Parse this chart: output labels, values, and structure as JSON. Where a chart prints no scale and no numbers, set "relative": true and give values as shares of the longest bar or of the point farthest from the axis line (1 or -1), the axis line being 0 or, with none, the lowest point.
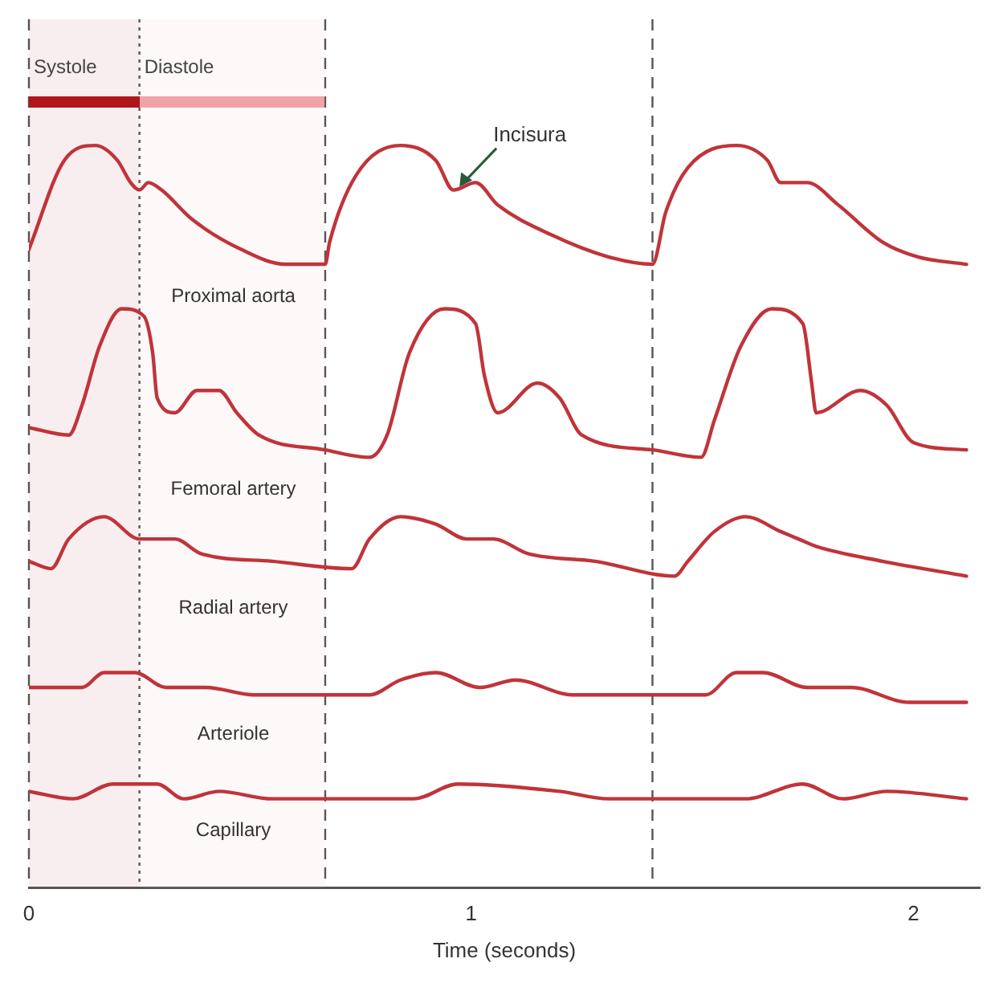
{
  "chart_data": {
    "type": "line",
    "relative": true,
    "xlabel": "Time (seconds)",
    "xlim": [
      0,
      2.15
    ],
    "xticks": [
      0,
      1,
      2
    ],
    "grid": false,
    "legend": false,
    "marker": "none",
    "line_style": "solid",
    "series": [
      {
        "name": "Proximal aorta",
        "color": "#c0343a",
        "x": [
          0,
          0.08,
          0.15,
          0.2,
          0.23,
          0.25,
          0.27,
          0.3,
          0.37,
          0.48,
          0.58,
          0.67,
          0.68,
          0.74,
          0.84,
          0.92,
          0.96,
          1.01,
          1.06,
          1.18,
          1.31,
          1.41,
          1.44,
          1.49,
          1.6,
          1.67,
          1.7,
          1.76,
          1.83,
          1.93,
          2.01,
          2.12
        ],
        "values": [
          0.86,
          0.98,
          1.0,
          0.98,
          0.95,
          0.94,
          0.95,
          0.94,
          0.9,
          0.86,
          0.84,
          0.84,
          0.87,
          0.96,
          1.0,
          0.98,
          0.94,
          0.95,
          0.92,
          0.88,
          0.85,
          0.84,
          0.91,
          0.97,
          1.0,
          0.98,
          0.95,
          0.95,
          0.92,
          0.87,
          0.85,
          0.84
        ]
      },
      {
        "name": "Femoral artery",
        "color": "#c0343a",
        "x": [
          0,
          0.09,
          0.12,
          0.16,
          0.21,
          0.26,
          0.28,
          0.29,
          0.33,
          0.38,
          0.43,
          0.47,
          0.52,
          0.67,
          0.77,
          0.81,
          0.86,
          0.94,
          1.01,
          1.03,
          1.06,
          1.15,
          1.2,
          1.25,
          1.41,
          1.52,
          1.55,
          1.61,
          1.68,
          1.75,
          1.77,
          1.78,
          1.88,
          1.94,
          2.0,
          2.12
        ],
        "values": [
          0.62,
          0.61,
          0.65,
          0.73,
          0.78,
          0.77,
          0.72,
          0.66,
          0.64,
          0.67,
          0.67,
          0.64,
          0.61,
          0.59,
          0.58,
          0.61,
          0.72,
          0.78,
          0.76,
          0.69,
          0.64,
          0.68,
          0.66,
          0.61,
          0.59,
          0.58,
          0.63,
          0.73,
          0.78,
          0.76,
          0.68,
          0.64,
          0.67,
          0.65,
          0.6,
          0.59
        ]
      },
      {
        "name": "Radial artery",
        "color": "#c0343a",
        "x": [
          0,
          0.05,
          0.09,
          0.17,
          0.25,
          0.33,
          0.39,
          0.55,
          0.73,
          0.77,
          0.84,
          0.92,
          0.99,
          1.05,
          1.13,
          1.28,
          1.46,
          1.49,
          1.55,
          1.62,
          1.7,
          1.74,
          1.78,
          1.93,
          2.12
        ],
        "values": [
          0.44,
          0.43,
          0.47,
          0.5,
          0.47,
          0.47,
          0.45,
          0.44,
          0.43,
          0.47,
          0.5,
          0.49,
          0.47,
          0.47,
          0.45,
          0.44,
          0.42,
          0.44,
          0.48,
          0.5,
          0.48,
          0.47,
          0.46,
          0.44,
          0.42
        ]
      },
      {
        "name": "Arteriole",
        "color": "#c0343a",
        "x": [
          0,
          0.12,
          0.17,
          0.24,
          0.31,
          0.4,
          0.51,
          0.77,
          0.84,
          0.92,
          1.02,
          1.1,
          1.23,
          1.53,
          1.6,
          1.66,
          1.76,
          1.86,
          1.99,
          2.12
        ],
        "values": [
          0.27,
          0.27,
          0.29,
          0.29,
          0.27,
          0.27,
          0.26,
          0.26,
          0.28,
          0.29,
          0.27,
          0.28,
          0.26,
          0.26,
          0.29,
          0.29,
          0.27,
          0.27,
          0.25,
          0.25
        ]
      },
      {
        "name": "Capillary",
        "color": "#c0343a",
        "x": [
          0,
          0.1,
          0.19,
          0.29,
          0.35,
          0.43,
          0.55,
          0.87,
          0.97,
          1.2,
          1.31,
          1.62,
          1.75,
          1.84,
          1.94,
          2.12
        ],
        "values": [
          0.13,
          0.12,
          0.14,
          0.14,
          0.12,
          0.13,
          0.12,
          0.12,
          0.14,
          0.13,
          0.12,
          0.12,
          0.14,
          0.12,
          0.13,
          0.12
        ]
      }
    ],
    "ref_lines": [
      {
        "axis": "x",
        "value": 0,
        "line_style": "dashed"
      },
      {
        "axis": "x",
        "value": 0.25,
        "line_style": "dotted"
      },
      {
        "axis": "x",
        "value": 0.67,
        "line_style": "dashed"
      },
      {
        "axis": "x",
        "value": 1.41,
        "line_style": "dashed"
      }
    ],
    "bands": [
      {
        "axis": "x",
        "from": 0,
        "to": 0.25,
        "label": "Systole",
        "color": "#b0151c"
      },
      {
        "axis": "x",
        "from": 0.25,
        "to": 0.67,
        "label": "Diastole",
        "color": "#f0a3a6"
      }
    ],
    "annotations": [
      {
        "text": "Incisura",
        "x": 0.97,
        "y": 0.94
      }
    ]
  }
}
